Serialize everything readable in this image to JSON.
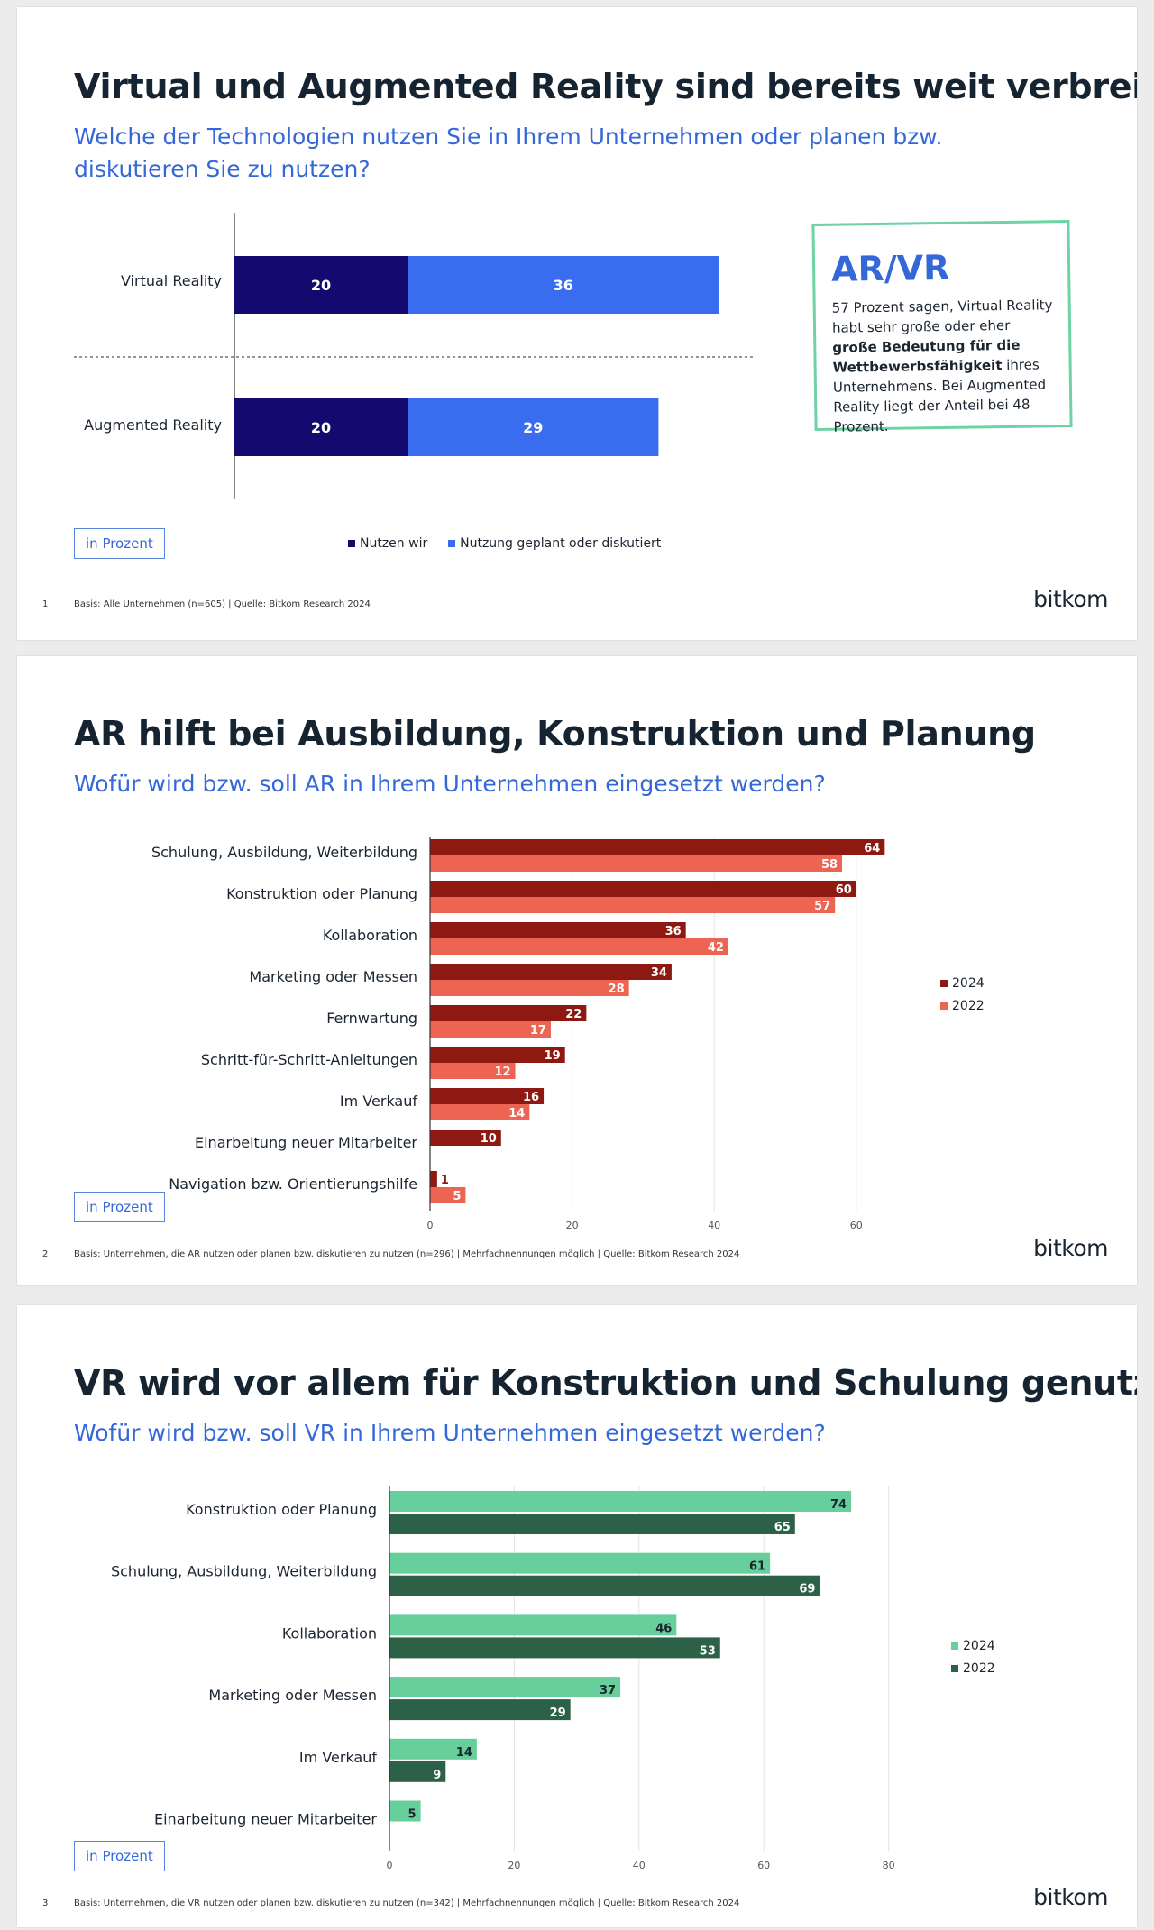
{
  "slides": [
    {
      "number": "1",
      "title": "Virtual und Augmented Reality sind bereits weit verbreitet",
      "subtitle": "Welche der Technologien nutzen Sie in Ihrem Unternehmen oder planen bzw. diskutieren Sie zu nutzen?",
      "unit_badge": "in Prozent",
      "footer": "Basis: Alle Unternehmen (n=605) | Quelle: Bitkom Research 2024",
      "logo": "bitkom",
      "legend": [
        {
          "label": "Nutzen wir",
          "color": "#120a6e"
        },
        {
          "label": "Nutzung geplant oder diskutiert",
          "color": "#3a6cf0"
        }
      ],
      "callout": {
        "title": "AR/VR",
        "text_1": "57 Prozent sagen, Virtual Reality habt sehr große oder eher ",
        "text_bold": "große Bedeutung für die Wettbewerbsfähigkeit",
        "text_2": " ihres Unternehmens. Bei Augmented Reality liegt der Anteil bei 48 Prozent."
      }
    },
    {
      "number": "2",
      "title": "AR hilft bei Ausbildung, Konstruktion und Planung",
      "subtitle": "Wofür wird bzw. soll AR in Ihrem Unternehmen eingesetzt werden?",
      "unit_badge": "in Prozent",
      "footer": "Basis: Unternehmen, die AR nutzen oder planen bzw. diskutieren zu nutzen (n=296) | Mehrfachnennungen möglich | Quelle: Bitkom Research 2024",
      "logo": "bitkom"
    },
    {
      "number": "3",
      "title": "VR wird vor allem für Konstruktion und Schulung genutzt",
      "subtitle": "Wofür wird bzw. soll VR in Ihrem Unternehmen eingesetzt werden?",
      "unit_badge": "in Prozent",
      "footer": "Basis: Unternehmen, die VR nutzen oder planen bzw. diskutieren zu nutzen (n=342) | Mehrfachnennungen möglich | Quelle: Bitkom Research 2024",
      "logo": "bitkom"
    }
  ],
  "chart_data": [
    {
      "type": "bar",
      "orientation": "horizontal",
      "stacked": true,
      "categories": [
        "Virtual Reality",
        "Augmented Reality"
      ],
      "series": [
        {
          "name": "Nutzen wir",
          "values": [
            20,
            20
          ],
          "color": "#120a6e"
        },
        {
          "name": "Nutzung geplant oder diskutiert",
          "values": [
            36,
            29
          ],
          "color": "#3a6cf0"
        }
      ],
      "title": "Virtual und Augmented Reality sind bereits weit verbreitet",
      "legend": "bottom"
    },
    {
      "type": "bar",
      "orientation": "horizontal",
      "categories": [
        "Schulung, Ausbildung, Weiterbildung",
        "Konstruktion oder Planung",
        "Kollaboration",
        "Marketing oder Messen",
        "Fernwartung",
        "Schritt-für-Schritt-Anleitungen",
        "Im Verkauf",
        "Einarbeitung neuer Mitarbeiter",
        "Navigation bzw. Orientierungshilfe"
      ],
      "series": [
        {
          "name": "2024",
          "values": [
            64,
            60,
            36,
            34,
            22,
            19,
            16,
            10,
            1
          ],
          "color": "#8e1812"
        },
        {
          "name": "2022",
          "values": [
            58,
            57,
            42,
            28,
            17,
            12,
            14,
            null,
            5
          ],
          "color": "#ee6452"
        }
      ],
      "x_ticks": [
        0,
        20,
        40,
        60
      ],
      "xlim": [
        0,
        70
      ],
      "title": "AR hilft bei Ausbildung, Konstruktion und Planung",
      "grid": true,
      "legend": "right"
    },
    {
      "type": "bar",
      "orientation": "horizontal",
      "categories": [
        "Konstruktion oder Planung",
        "Schulung, Ausbildung, Weiterbildung",
        "Kollaboration",
        "Marketing oder Messen",
        "Im Verkauf",
        "Einarbeitung neuer Mitarbeiter"
      ],
      "series": [
        {
          "name": "2024",
          "values": [
            74,
            61,
            46,
            37,
            14,
            5
          ],
          "color": "#66cf9b"
        },
        {
          "name": "2022",
          "values": [
            65,
            69,
            53,
            29,
            9,
            null
          ],
          "color": "#2c6148"
        }
      ],
      "x_ticks": [
        0,
        20,
        40,
        60,
        80
      ],
      "xlim": [
        0,
        80
      ],
      "title": "VR wird vor allem für Konstruktion und Schulung genutzt",
      "grid": true,
      "legend": "right"
    }
  ]
}
